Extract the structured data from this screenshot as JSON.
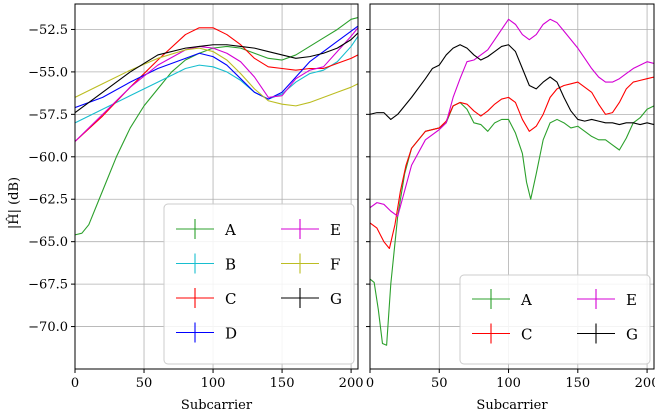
{
  "chart_data": [
    {
      "type": "line",
      "xlabel": "Subcarrier",
      "ylabel": "|Ĥ| (dB)",
      "xlim": [
        0,
        205
      ],
      "ylim": [
        -72.5,
        -51
      ],
      "xticks": [
        0,
        50,
        100,
        150,
        200
      ],
      "yticks": [
        -70.0,
        -67.5,
        -65.0,
        -62.5,
        -60.0,
        -57.5,
        -55.0,
        -52.5
      ],
      "grid": true,
      "legend": {
        "position": "lower-right",
        "columns": 2
      },
      "series": [
        {
          "name": "A",
          "color": "#2ca02c",
          "x": [
            0,
            5,
            10,
            20,
            30,
            40,
            50,
            60,
            70,
            80,
            90,
            100,
            110,
            120,
            130,
            140,
            150,
            160,
            170,
            180,
            190,
            200,
            205
          ],
          "y": [
            -64.6,
            -64.5,
            -64.0,
            -62.0,
            -60.0,
            -58.3,
            -57.0,
            -56.0,
            -55.0,
            -54.3,
            -53.9,
            -53.6,
            -53.5,
            -53.6,
            -53.9,
            -54.2,
            -54.3,
            -54.0,
            -53.5,
            -53.0,
            -52.5,
            -51.9,
            -51.8
          ]
        },
        {
          "name": "B",
          "color": "#17becf",
          "x": [
            0,
            20,
            40,
            60,
            80,
            90,
            100,
            110,
            120,
            130,
            140,
            150,
            160,
            170,
            180,
            190,
            200,
            205
          ],
          "y": [
            -58.0,
            -57.2,
            -56.4,
            -55.6,
            -54.8,
            -54.6,
            -54.7,
            -55.0,
            -55.5,
            -56.2,
            -56.6,
            -56.3,
            -55.6,
            -55.1,
            -54.9,
            -54.4,
            -53.5,
            -52.9
          ]
        },
        {
          "name": "C",
          "color": "#ff0000",
          "x": [
            0,
            20,
            40,
            60,
            80,
            90,
            100,
            110,
            120,
            130,
            140,
            150,
            160,
            170,
            180,
            190,
            200,
            205
          ],
          "y": [
            -59.1,
            -57.6,
            -55.9,
            -54.3,
            -52.8,
            -52.4,
            -52.4,
            -52.8,
            -53.4,
            -54.2,
            -54.7,
            -54.8,
            -54.9,
            -54.8,
            -54.8,
            -54.5,
            -54.2,
            -54.0
          ]
        },
        {
          "name": "D",
          "color": "#0000ff",
          "x": [
            0,
            20,
            40,
            60,
            80,
            90,
            100,
            110,
            120,
            130,
            140,
            150,
            160,
            170,
            180,
            190,
            200,
            205
          ],
          "y": [
            -57.1,
            -56.5,
            -55.6,
            -54.8,
            -54.2,
            -53.9,
            -54.1,
            -54.6,
            -55.4,
            -56.2,
            -56.6,
            -56.2,
            -55.3,
            -54.4,
            -53.8,
            -53.2,
            -52.6,
            -52.3
          ]
        },
        {
          "name": "E",
          "color": "#d400d4",
          "x": [
            0,
            20,
            40,
            60,
            80,
            90,
            100,
            110,
            120,
            130,
            140,
            150,
            160,
            170,
            180,
            190,
            200,
            205
          ],
          "y": [
            -59.1,
            -57.5,
            -55.9,
            -54.6,
            -53.7,
            -53.5,
            -53.6,
            -53.9,
            -54.4,
            -55.3,
            -56.5,
            -56.4,
            -55.4,
            -54.9,
            -54.7,
            -53.8,
            -52.9,
            -52.4
          ]
        },
        {
          "name": "F",
          "color": "#bcbd22",
          "x": [
            0,
            20,
            40,
            60,
            80,
            90,
            100,
            110,
            120,
            130,
            140,
            150,
            160,
            170,
            180,
            190,
            200,
            205
          ],
          "y": [
            -56.5,
            -55.7,
            -54.9,
            -54.2,
            -53.7,
            -53.6,
            -53.8,
            -54.3,
            -55.1,
            -56.0,
            -56.7,
            -56.9,
            -57.0,
            -56.8,
            -56.5,
            -56.2,
            -55.9,
            -55.7
          ]
        },
        {
          "name": "G",
          "color": "#000000",
          "x": [
            0,
            20,
            40,
            60,
            80,
            90,
            100,
            110,
            120,
            130,
            140,
            150,
            160,
            170,
            180,
            190,
            200,
            205
          ],
          "y": [
            -57.4,
            -56.2,
            -55.0,
            -54.0,
            -53.6,
            -53.5,
            -53.4,
            -53.4,
            -53.5,
            -53.6,
            -53.8,
            -54.0,
            -54.2,
            -54.1,
            -53.9,
            -53.6,
            -53.1,
            -52.7
          ]
        }
      ]
    },
    {
      "type": "line",
      "xlabel": "Subcarrier",
      "ylabel": "",
      "xlim": [
        0,
        205
      ],
      "ylim": [
        -72.5,
        -51
      ],
      "xticks": [
        0,
        50,
        100,
        150,
        200
      ],
      "yticks": [
        -70.0,
        -67.5,
        -65.0,
        -62.5,
        -60.0,
        -57.5,
        -55.0,
        -52.5
      ],
      "grid": true,
      "legend": {
        "position": "lower-right",
        "columns": 2
      },
      "series": [
        {
          "name": "A",
          "color": "#2ca02c",
          "x": [
            0,
            3,
            6,
            9,
            12,
            15,
            20,
            25,
            30,
            40,
            50,
            55,
            60,
            65,
            70,
            75,
            80,
            85,
            90,
            95,
            100,
            105,
            110,
            113,
            116,
            120,
            125,
            130,
            135,
            140,
            145,
            150,
            155,
            160,
            165,
            170,
            175,
            180,
            185,
            190,
            195,
            200,
            205
          ],
          "y": [
            -67.2,
            -67.4,
            -69.0,
            -71.0,
            -71.1,
            -67.5,
            -63.5,
            -61.0,
            -59.5,
            -58.5,
            -58.3,
            -58.0,
            -57.0,
            -56.8,
            -57.2,
            -58.0,
            -58.1,
            -58.5,
            -58.0,
            -57.8,
            -57.8,
            -58.6,
            -59.8,
            -61.5,
            -62.5,
            -61.0,
            -59.0,
            -58.0,
            -57.8,
            -58.0,
            -58.3,
            -58.2,
            -58.5,
            -58.8,
            -59.0,
            -59.0,
            -59.3,
            -59.6,
            -58.9,
            -58.0,
            -57.7,
            -57.2,
            -57.0
          ]
        },
        {
          "name": "C",
          "color": "#ff0000",
          "x": [
            0,
            5,
            10,
            14,
            18,
            22,
            26,
            30,
            40,
            50,
            55,
            60,
            65,
            70,
            75,
            80,
            85,
            90,
            95,
            100,
            105,
            110,
            115,
            120,
            125,
            130,
            135,
            140,
            145,
            150,
            155,
            160,
            165,
            170,
            175,
            180,
            185,
            190,
            195,
            200,
            205
          ],
          "y": [
            -63.9,
            -64.2,
            -65.0,
            -65.4,
            -64.0,
            -62.0,
            -60.5,
            -59.5,
            -58.5,
            -58.3,
            -57.9,
            -57.0,
            -56.8,
            -56.9,
            -57.3,
            -57.6,
            -57.3,
            -56.9,
            -56.6,
            -56.5,
            -56.8,
            -57.8,
            -58.5,
            -58.2,
            -57.5,
            -56.5,
            -56.0,
            -55.8,
            -55.7,
            -55.6,
            -55.9,
            -56.2,
            -56.9,
            -57.5,
            -57.4,
            -56.8,
            -56.0,
            -55.6,
            -55.5,
            -55.4,
            -55.3
          ]
        },
        {
          "name": "E",
          "color": "#d400d4",
          "x": [
            0,
            5,
            10,
            15,
            20,
            25,
            30,
            40,
            50,
            55,
            60,
            65,
            70,
            75,
            80,
            85,
            90,
            95,
            100,
            105,
            110,
            115,
            120,
            125,
            130,
            135,
            140,
            145,
            150,
            155,
            160,
            165,
            170,
            175,
            180,
            185,
            190,
            195,
            200,
            205
          ],
          "y": [
            -63.0,
            -62.7,
            -62.8,
            -63.2,
            -63.5,
            -62.0,
            -60.5,
            -59.0,
            -58.4,
            -58.0,
            -56.5,
            -55.4,
            -54.4,
            -54.3,
            -54.0,
            -53.7,
            -53.1,
            -52.5,
            -51.9,
            -52.2,
            -52.8,
            -53.1,
            -52.8,
            -52.2,
            -51.9,
            -52.1,
            -52.6,
            -53.1,
            -53.6,
            -54.2,
            -54.8,
            -55.3,
            -55.6,
            -55.6,
            -55.4,
            -55.1,
            -54.8,
            -54.6,
            -54.4,
            -54.5
          ]
        },
        {
          "name": "G",
          "color": "#000000",
          "x": [
            0,
            5,
            10,
            15,
            20,
            30,
            40,
            45,
            50,
            55,
            60,
            65,
            70,
            75,
            80,
            85,
            90,
            95,
            100,
            105,
            110,
            115,
            120,
            125,
            130,
            135,
            140,
            145,
            150,
            155,
            160,
            165,
            170,
            175,
            180,
            185,
            190,
            195,
            200,
            205
          ],
          "y": [
            -57.5,
            -57.4,
            -57.4,
            -57.8,
            -57.5,
            -56.5,
            -55.4,
            -54.8,
            -54.6,
            -54.0,
            -53.6,
            -53.4,
            -53.6,
            -54.0,
            -54.3,
            -54.1,
            -53.8,
            -53.5,
            -53.4,
            -53.8,
            -54.8,
            -55.8,
            -56.0,
            -55.6,
            -55.3,
            -55.6,
            -56.5,
            -57.3,
            -57.8,
            -57.9,
            -57.8,
            -57.9,
            -58.0,
            -58.0,
            -58.1,
            -58.0,
            -58.0,
            -58.1,
            -58.0,
            -58.1
          ]
        }
      ]
    }
  ]
}
